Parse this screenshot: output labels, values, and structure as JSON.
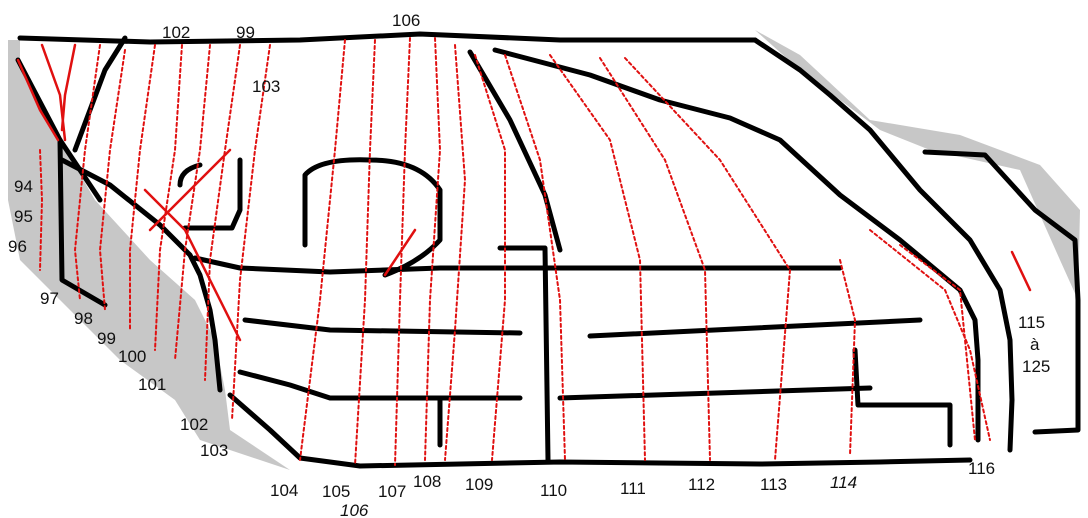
{
  "map": {
    "colors": {
      "roads": "#000000",
      "contours": "#e01010",
      "shadow": "#bdbdbd",
      "background": "#ffffff"
    },
    "labels": {
      "l94": "94",
      "l95": "95",
      "l96": "96",
      "l97": "97",
      "l98": "98",
      "l99_left": "99",
      "l100": "100",
      "l101": "101",
      "l102_left": "102",
      "l103_left": "103",
      "l102_top": "102",
      "l99_top": "99",
      "l103_top": "103",
      "l106_top": "106",
      "l104": "104",
      "l105": "105",
      "l106_bottom": "106",
      "l107": "107",
      "l108": "108",
      "l109": "109",
      "l110": "110",
      "l111": "111",
      "l112": "112",
      "l113": "113",
      "l114": "114",
      "l116": "116",
      "l115": "115",
      "la": "à",
      "l125": "125"
    }
  }
}
